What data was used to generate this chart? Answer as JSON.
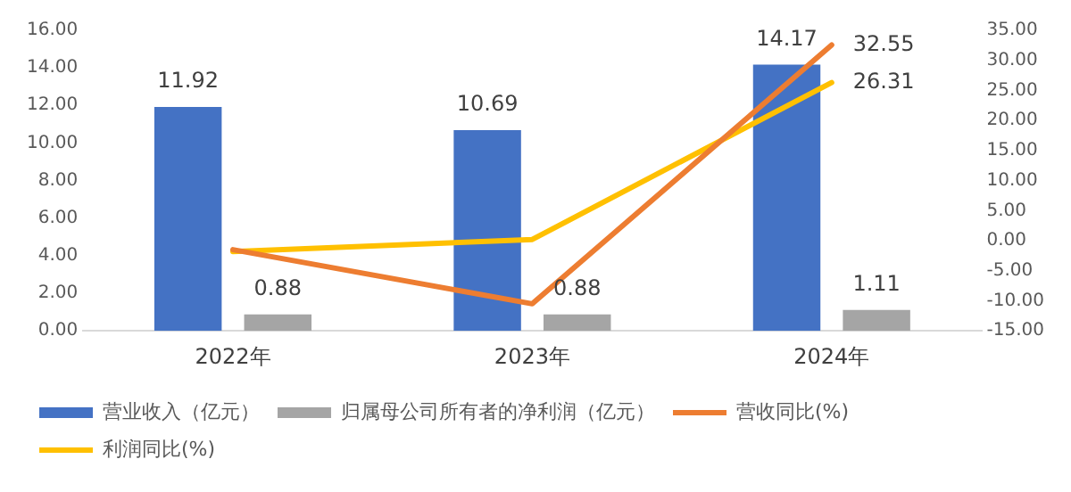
{
  "chart_data": {
    "type": "bar",
    "categories": [
      "2022年",
      "2023年",
      "2024年"
    ],
    "series": [
      {
        "name": "营业收入（亿元）",
        "color": "#4472c4",
        "values": [
          11.92,
          10.69,
          14.17
        ],
        "value_labels": [
          "11.92",
          "10.69",
          "14.17"
        ]
      },
      {
        "name": "归属母公司所有者的净利润（亿元）",
        "color": "#a5a5a5",
        "values": [
          0.88,
          0.88,
          1.11
        ],
        "value_labels": [
          "0.88",
          "0.88",
          "1.11"
        ]
      },
      {
        "name": "营收同比(%)",
        "type": "line",
        "axis": "y2",
        "color": "#ed7d31",
        "values": [
          -1.5,
          -10.5,
          32.55
        ],
        "value_labels": [
          null,
          null,
          "32.55"
        ]
      },
      {
        "name": "利润同比(%)",
        "type": "line",
        "axis": "y2",
        "color": "#ffc000",
        "values": [
          -1.8,
          0.2,
          26.31
        ],
        "value_labels": [
          null,
          null,
          "26.31"
        ]
      }
    ],
    "ylim": [
      0,
      16
    ],
    "yticks": [
      {
        "value": 0,
        "label": "0.00"
      },
      {
        "value": 2,
        "label": "2.00"
      },
      {
        "value": 4,
        "label": "4.00"
      },
      {
        "value": 6,
        "label": "6.00"
      },
      {
        "value": 8,
        "label": "8.00"
      },
      {
        "value": 10,
        "label": "10.00"
      },
      {
        "value": 12,
        "label": "12.00"
      },
      {
        "value": 14,
        "label": "14.00"
      },
      {
        "value": 16,
        "label": "16.00"
      }
    ],
    "y2lim": [
      -15,
      35
    ],
    "y2ticks": [
      {
        "value": -15,
        "label": "-15.00"
      },
      {
        "value": -10,
        "label": "-10.00"
      },
      {
        "value": -5,
        "label": "-5.00"
      },
      {
        "value": 0,
        "label": "0.00"
      },
      {
        "value": 5,
        "label": "5.00"
      },
      {
        "value": 10,
        "label": "10.00"
      },
      {
        "value": 15,
        "label": "15.00"
      },
      {
        "value": 20,
        "label": "20.00"
      },
      {
        "value": 25,
        "label": "25.00"
      },
      {
        "value": 30,
        "label": "30.00"
      },
      {
        "value": 35,
        "label": "35.00"
      }
    ],
    "grid": false,
    "legend": "bottom",
    "marker": "none",
    "line_style": "solid"
  }
}
